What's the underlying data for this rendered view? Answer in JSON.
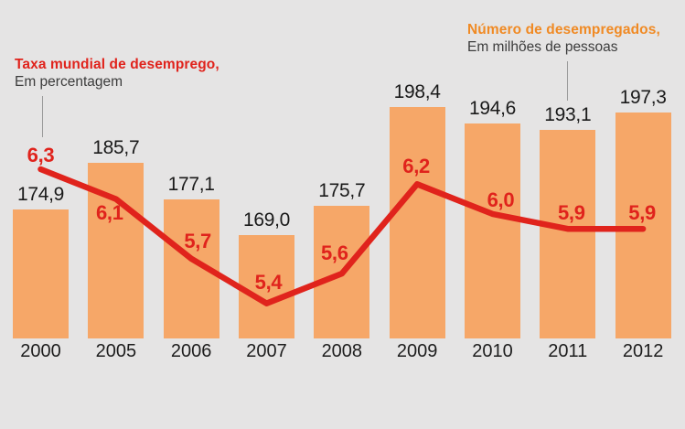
{
  "legend": {
    "line": {
      "title": "Taxa mundial de desemprego,",
      "subtitle": "Em percentagem"
    },
    "bar": {
      "title": "Número de desempregados,",
      "subtitle": "Em milhões de pessoas"
    }
  },
  "colors": {
    "background": "#e5e4e4",
    "bar_fill": "#f6a768",
    "line_stroke": "#e0231c",
    "line_title": "#e0231c",
    "bar_title": "#f08a24",
    "subtitle_text": "#3c3c3c",
    "value_text": "#1a1a1a",
    "year_text": "#1d1d1d",
    "connector": "#9a9a9a"
  },
  "chart_data": {
    "type": "bar+line",
    "title": "",
    "xlabel": "",
    "ylabel": "",
    "grid": false,
    "legend_position": "annotation titles above chart, connected by thin leader lines",
    "categories": [
      "2000",
      "2005",
      "2006",
      "2007",
      "2008",
      "2009",
      "2010",
      "2011",
      "2012"
    ],
    "series": [
      {
        "name": "Número de desempregados",
        "unit": "milhões de pessoas",
        "type": "bar",
        "color": "#f6a768",
        "values": [
          174.9,
          185.7,
          177.1,
          169.0,
          175.7,
          198.4,
          194.6,
          193.1,
          197.3
        ],
        "labels": [
          "174,9",
          "185,7",
          "177,1",
          "169,0",
          "175,7",
          "198,4",
          "194,6",
          "193,1",
          "197,3"
        ],
        "axis_baseline_value": 145,
        "ylim": [
          145,
          210
        ]
      },
      {
        "name": "Taxa mundial de desemprego",
        "unit": "percentagem",
        "type": "line",
        "color": "#e0231c",
        "values": [
          6.3,
          6.1,
          5.7,
          5.4,
          5.6,
          6.2,
          6.0,
          5.9,
          5.9
        ],
        "labels": [
          "6,3",
          "6,1",
          "5,7",
          "5,4",
          "5,6",
          "6,2",
          "6,0",
          "5,9",
          "5,9"
        ],
        "label_side": [
          "above",
          "below",
          "above",
          "above",
          "above",
          "above",
          "above",
          "above",
          "above"
        ],
        "ylim": [
          5.17,
          6.45
        ]
      }
    ]
  }
}
